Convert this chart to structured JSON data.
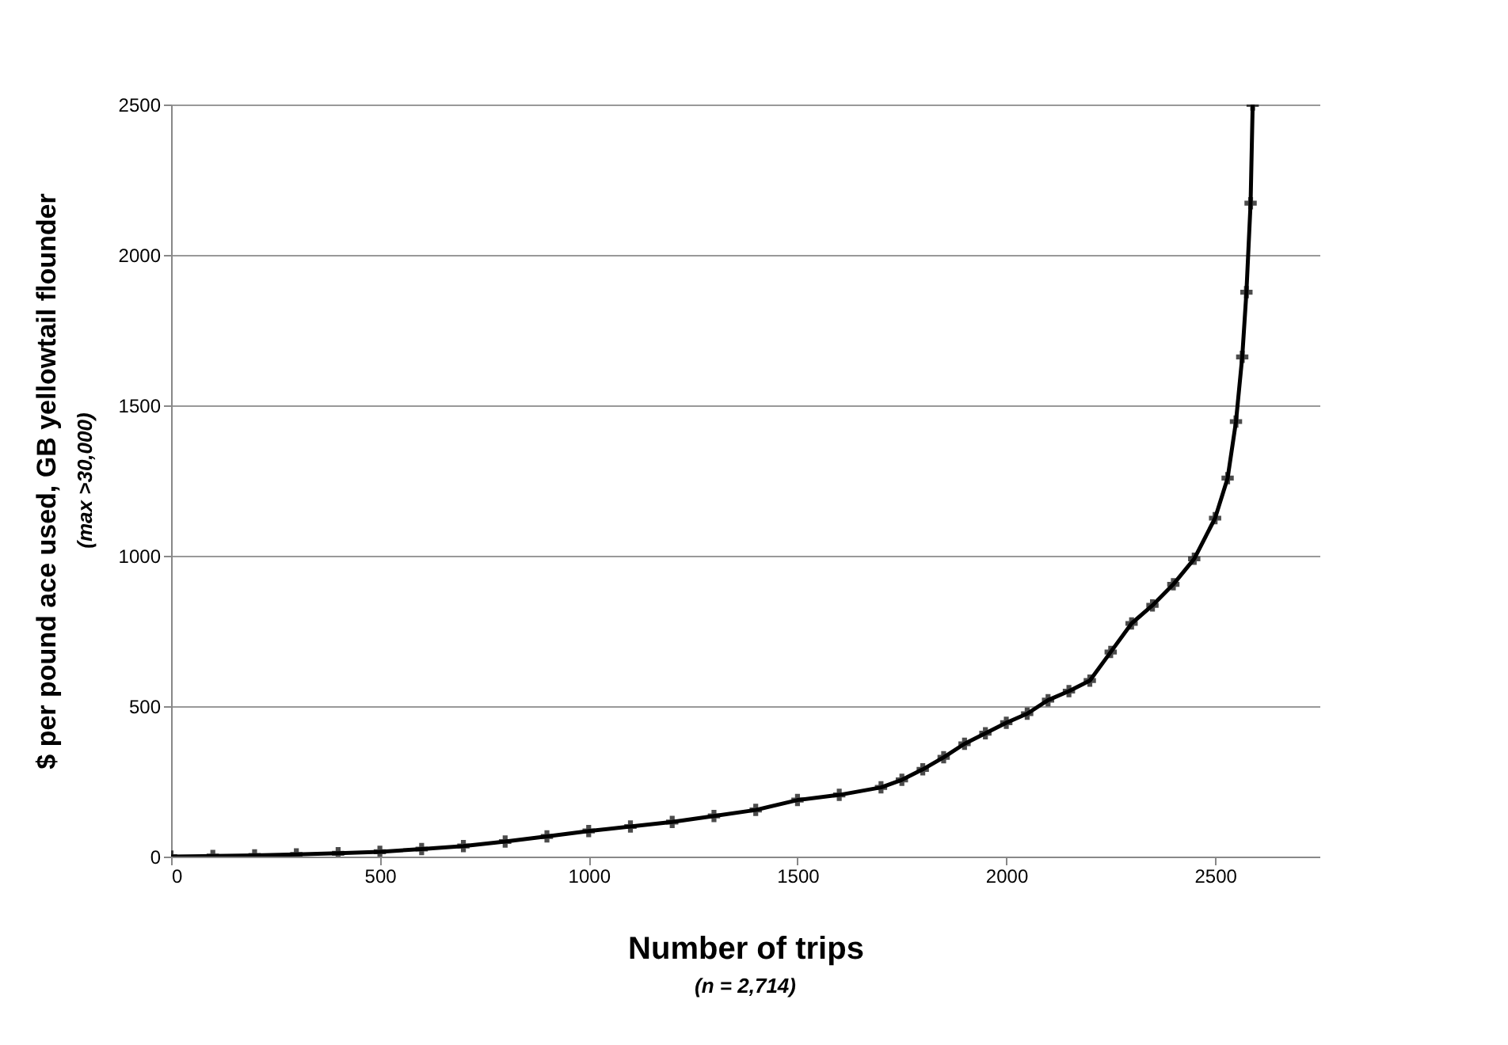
{
  "chart_data": {
    "type": "line",
    "xlabel": "Number of trips",
    "ylabel": "$ per pound ace used, GB yellowtail flounder",
    "annotations": [
      "(max >30,000)",
      "(n = 2,714)"
    ],
    "x": [
      0,
      100,
      200,
      300,
      400,
      500,
      600,
      700,
      800,
      900,
      1000,
      1100,
      1200,
      1300,
      1400,
      1500,
      1600,
      1700,
      1750,
      1800,
      1850,
      1900,
      1950,
      2000,
      2050,
      2100,
      2150,
      2200,
      2250,
      2300,
      2350,
      2400,
      2450,
      2500,
      2530,
      2550,
      2565,
      2575,
      2585,
      2590
    ],
    "series": [
      {
        "color": "#000000",
        "values": [
          0,
          2,
          4,
          7,
          11,
          16,
          25,
          35,
          50,
          67,
          85,
          100,
          115,
          135,
          155,
          188,
          205,
          230,
          255,
          290,
          330,
          375,
          410,
          445,
          475,
          520,
          550,
          585,
          680,
          775,
          835,
          905,
          990,
          1125,
          1258,
          1446,
          1661,
          1876,
          2172,
          2500
        ]
      }
    ],
    "xlim": [
      0,
      2750
    ],
    "xticks": [
      0,
      500,
      1000,
      1500,
      2000,
      2500
    ],
    "ylim": [
      0,
      2500
    ],
    "yticks": [
      0,
      500,
      1000,
      1500,
      2000,
      2500
    ],
    "grid": "y",
    "marker": "cross",
    "line_style": "solid"
  }
}
